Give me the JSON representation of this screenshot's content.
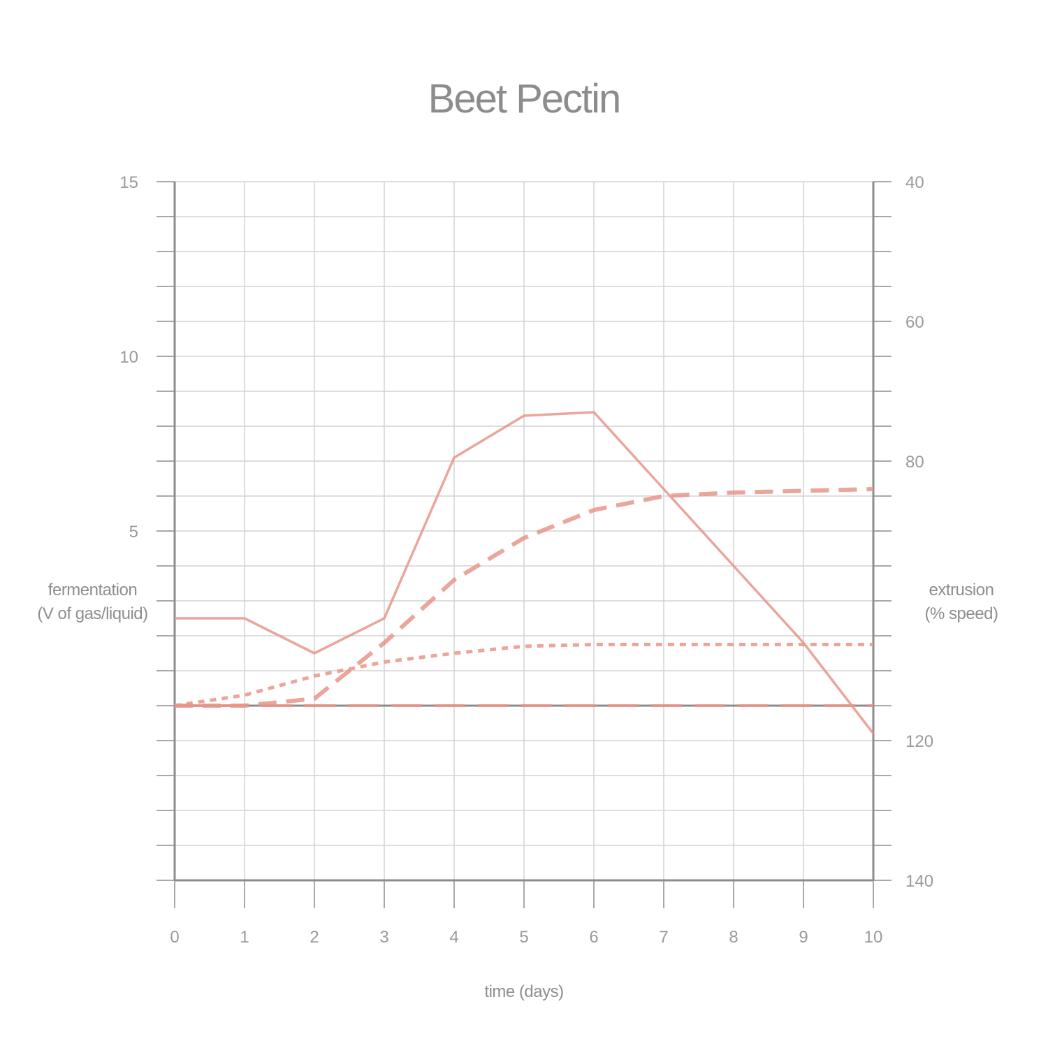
{
  "chart_data": {
    "type": "line",
    "title": "Beet Pectin",
    "xlabel": "time (days)",
    "ylabel_left": [
      "fermentation",
      "(V of gas/liquid)"
    ],
    "ylabel_right": [
      "extrusion",
      "(% speed)"
    ],
    "xlim": [
      0,
      10
    ],
    "ylim_left": [
      -5,
      15
    ],
    "ylim_right": [
      40,
      140
    ],
    "right_axis_inverted": true,
    "x_ticks": [
      "0",
      "1",
      "2",
      "3",
      "4",
      "5",
      "6",
      "7",
      "8",
      "9",
      "10"
    ],
    "y_left_ticks": [
      {
        "value": 15,
        "label": "15"
      },
      {
        "value": 10,
        "label": "10"
      },
      {
        "value": 5,
        "label": "5"
      }
    ],
    "y_right_ticks": [
      {
        "value": 40,
        "label": "40"
      },
      {
        "value": 60,
        "label": "60"
      },
      {
        "value": 80,
        "label": "80"
      },
      {
        "value": 120,
        "label": "120"
      },
      {
        "value": 140,
        "label": "140"
      }
    ],
    "grid": true,
    "line_color": "#e8958a",
    "series": [
      {
        "axis": "right",
        "style": "solid",
        "x": [
          0,
          1,
          2,
          3,
          4,
          5,
          6,
          7,
          8,
          9,
          10
        ],
        "y": [
          102.5,
          102.5,
          107.5,
          102.5,
          79.5,
          73.5,
          73,
          84,
          95,
          106,
          119
        ]
      },
      {
        "axis": "left",
        "style": "dashed",
        "x": [
          0,
          1,
          2,
          3,
          4,
          5,
          6,
          7,
          8,
          9,
          10
        ],
        "y": [
          0,
          0,
          0.2,
          1.8,
          3.6,
          4.8,
          5.6,
          6.0,
          6.1,
          6.15,
          6.2
        ]
      },
      {
        "axis": "left",
        "style": "dotted",
        "x": [
          0,
          1,
          2,
          3,
          4,
          5,
          6,
          7,
          8,
          9,
          10
        ],
        "y": [
          0,
          0.3,
          0.85,
          1.25,
          1.5,
          1.7,
          1.75,
          1.75,
          1.75,
          1.75,
          1.75
        ]
      },
      {
        "axis": "left",
        "style": "long-dash",
        "x": [
          0,
          1,
          2,
          3,
          4,
          5,
          6,
          7,
          8,
          9,
          10
        ],
        "y": [
          0,
          0,
          0,
          0,
          0,
          0,
          0,
          0,
          0,
          0,
          0
        ]
      }
    ]
  }
}
